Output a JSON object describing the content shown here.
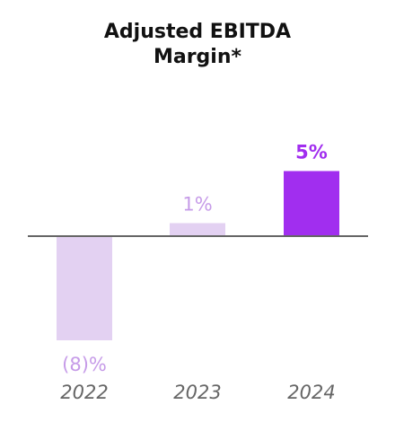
{
  "chart_data": {
    "type": "bar",
    "title_lines": [
      "Adjusted EBITDA",
      "Margin*"
    ],
    "categories": [
      "2022",
      "2023",
      "2024"
    ],
    "values": [
      -8,
      1,
      5
    ],
    "value_labels": [
      "(8)%",
      "1%",
      "5%"
    ],
    "bar_colors": [
      "#e3d1f2",
      "#e3d1f2",
      "#a12eef"
    ],
    "label_colors": [
      "#c69be8",
      "#c69be8",
      "#a12eef"
    ],
    "label_bold": [
      false,
      false,
      true
    ],
    "axis_color": "#666666",
    "tick_color": "#666666",
    "xlabel": "",
    "ylabel": "",
    "ylim": [
      -8,
      5
    ],
    "grid": false,
    "legend": "none"
  }
}
